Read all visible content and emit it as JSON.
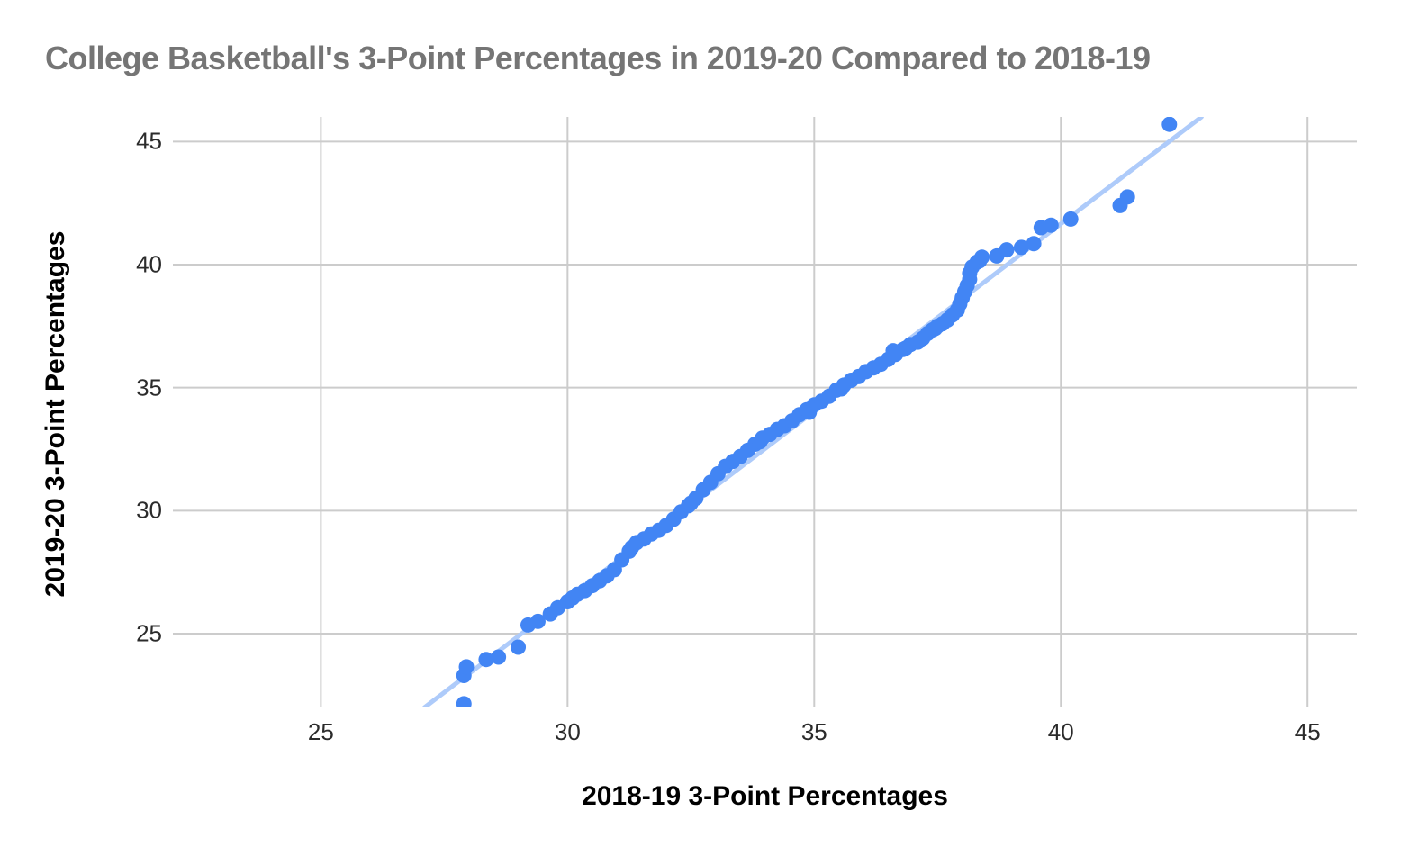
{
  "chart": {
    "title": "College Basketball's 3-Point Percentages in 2019-20 Compared to 2018-19",
    "x_axis_title": "2018-19 3-Point Percentages",
    "y_axis_title": "2019-20 3-Point Percentages"
  },
  "chart_data": {
    "type": "scatter",
    "title": "College Basketball's 3-Point Percentages in 2019-20 Compared to 2018-19",
    "xlabel": "2018-19 3-Point Percentages",
    "ylabel": "2019-20 3-Point Percentages",
    "xlim": [
      22,
      46
    ],
    "ylim": [
      22,
      46
    ],
    "x_ticks": [
      25,
      30,
      35,
      40,
      45
    ],
    "y_ticks": [
      25,
      30,
      35,
      40,
      45
    ],
    "grid": true,
    "legend": false,
    "colors": {
      "point": "#4285f4",
      "trendline": "#aecbfa",
      "gridline": "#cccccc",
      "title": "#757575",
      "tick_label": "#2b2b2b",
      "axis_title": "#000000",
      "background": "#ffffff"
    },
    "point_radius_px": 8.5,
    "trendline": {
      "x1": 27.1,
      "y1": 22.0,
      "x2": 42.85,
      "y2": 46.0
    },
    "points": [
      [
        27.9,
        22.15
      ],
      [
        27.9,
        23.3
      ],
      [
        27.95,
        23.65
      ],
      [
        28.35,
        23.95
      ],
      [
        28.6,
        24.05
      ],
      [
        29.0,
        24.45
      ],
      [
        29.2,
        25.35
      ],
      [
        29.4,
        25.5
      ],
      [
        29.65,
        25.8
      ],
      [
        29.8,
        26.05
      ],
      [
        30.0,
        26.3
      ],
      [
        30.1,
        26.45
      ],
      [
        30.2,
        26.6
      ],
      [
        30.35,
        26.75
      ],
      [
        30.5,
        26.95
      ],
      [
        30.65,
        27.15
      ],
      [
        30.8,
        27.35
      ],
      [
        30.95,
        27.6
      ],
      [
        31.1,
        28.0
      ],
      [
        31.25,
        28.35
      ],
      [
        31.3,
        28.5
      ],
      [
        31.4,
        28.7
      ],
      [
        31.55,
        28.85
      ],
      [
        31.7,
        29.05
      ],
      [
        31.85,
        29.2
      ],
      [
        32.0,
        29.4
      ],
      [
        32.15,
        29.65
      ],
      [
        32.3,
        29.95
      ],
      [
        32.45,
        30.2
      ],
      [
        32.5,
        30.3
      ],
      [
        32.6,
        30.5
      ],
      [
        32.75,
        30.85
      ],
      [
        32.9,
        31.15
      ],
      [
        33.05,
        31.5
      ],
      [
        33.2,
        31.8
      ],
      [
        33.35,
        32.0
      ],
      [
        33.5,
        32.2
      ],
      [
        33.65,
        32.45
      ],
      [
        33.8,
        32.7
      ],
      [
        33.9,
        32.8
      ],
      [
        33.95,
        32.95
      ],
      [
        34.1,
        33.1
      ],
      [
        34.25,
        33.3
      ],
      [
        34.4,
        33.45
      ],
      [
        34.55,
        33.65
      ],
      [
        34.7,
        33.9
      ],
      [
        34.85,
        34.1
      ],
      [
        34.9,
        34.0
      ],
      [
        35.0,
        34.3
      ],
      [
        35.15,
        34.45
      ],
      [
        35.3,
        34.65
      ],
      [
        35.45,
        34.9
      ],
      [
        35.55,
        34.95
      ],
      [
        35.6,
        35.1
      ],
      [
        35.75,
        35.3
      ],
      [
        35.9,
        35.45
      ],
      [
        36.05,
        35.65
      ],
      [
        36.2,
        35.8
      ],
      [
        36.35,
        35.95
      ],
      [
        36.5,
        36.15
      ],
      [
        36.6,
        36.5
      ],
      [
        36.65,
        36.35
      ],
      [
        36.8,
        36.55
      ],
      [
        36.85,
        36.6
      ],
      [
        36.95,
        36.75
      ],
      [
        37.1,
        36.85
      ],
      [
        37.2,
        37.0
      ],
      [
        37.3,
        37.2
      ],
      [
        37.4,
        37.35
      ],
      [
        37.45,
        37.4
      ],
      [
        37.5,
        37.5
      ],
      [
        37.6,
        37.6
      ],
      [
        37.7,
        37.75
      ],
      [
        37.8,
        37.95
      ],
      [
        37.9,
        38.15
      ],
      [
        37.95,
        38.4
      ],
      [
        38.0,
        38.65
      ],
      [
        38.05,
        38.9
      ],
      [
        38.1,
        39.15
      ],
      [
        38.15,
        39.4
      ],
      [
        38.15,
        39.65
      ],
      [
        38.2,
        39.9
      ],
      [
        38.3,
        40.1
      ],
      [
        38.35,
        40.15
      ],
      [
        38.4,
        40.3
      ],
      [
        38.7,
        40.35
      ],
      [
        38.9,
        40.6
      ],
      [
        39.2,
        40.7
      ],
      [
        39.45,
        40.85
      ],
      [
        39.6,
        41.5
      ],
      [
        39.8,
        41.6
      ],
      [
        40.2,
        41.85
      ],
      [
        41.2,
        42.4
      ],
      [
        41.35,
        42.75
      ],
      [
        42.2,
        45.7
      ]
    ]
  }
}
